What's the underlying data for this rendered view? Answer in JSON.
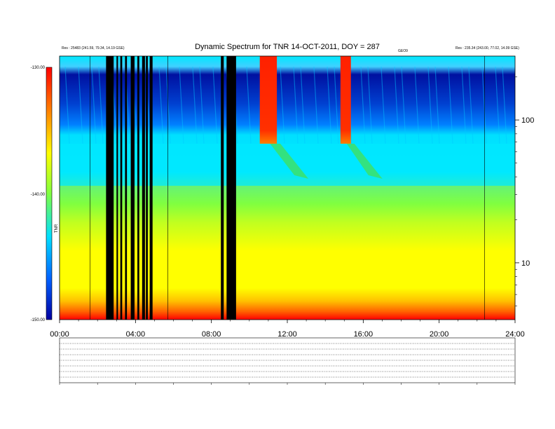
{
  "chart_data": {
    "type": "heatmap",
    "title": "Dynamic Spectrum for TNR 14-OCT-2011, DOY = 287",
    "xlabel": "",
    "ylabel": "",
    "x_tick_labels": [
      "00:00",
      "04:00",
      "08:00",
      "12:00",
      "16:00",
      "20:00",
      "24:00"
    ],
    "x_range_hours": [
      0,
      24
    ],
    "y_scale": "log",
    "y_range": [
      4,
      280
    ],
    "y_tick_labels": [
      "100",
      "10"
    ],
    "colorbar": {
      "tick_labels": [
        "-130.00",
        "-140.00",
        "-150.00"
      ],
      "range": [
        -150,
        -130
      ],
      "label": "TNR",
      "colors": [
        "#0000a0",
        "#0060ff",
        "#00e0ff",
        "#80ff40",
        "#ffff00",
        "#ff8000",
        "#ff0000"
      ]
    },
    "data_gaps_hours": [
      [
        2.45,
        2.85
      ],
      [
        3.0,
        3.08
      ],
      [
        3.2,
        3.3
      ],
      [
        3.45,
        3.55
      ],
      [
        3.75,
        3.95
      ],
      [
        4.1,
        4.2
      ],
      [
        4.35,
        4.5
      ],
      [
        4.55,
        4.65
      ],
      [
        4.75,
        4.9
      ],
      [
        8.5,
        8.65
      ],
      [
        8.8,
        9.3
      ]
    ],
    "bursts": [
      {
        "start": 10.55,
        "width": 0.9,
        "color": "#ff2000"
      },
      {
        "start": 14.8,
        "width": 0.55,
        "color": "#ff2000"
      }
    ],
    "header_left": [
      "Res : 25483 (241.59, 79.34, 14.19 GSE)"
    ],
    "header_right": [
      "Res : 235.34 (243.00, 77.02, 14.09 GSE)"
    ],
    "header_center_small": "GEO9"
  }
}
